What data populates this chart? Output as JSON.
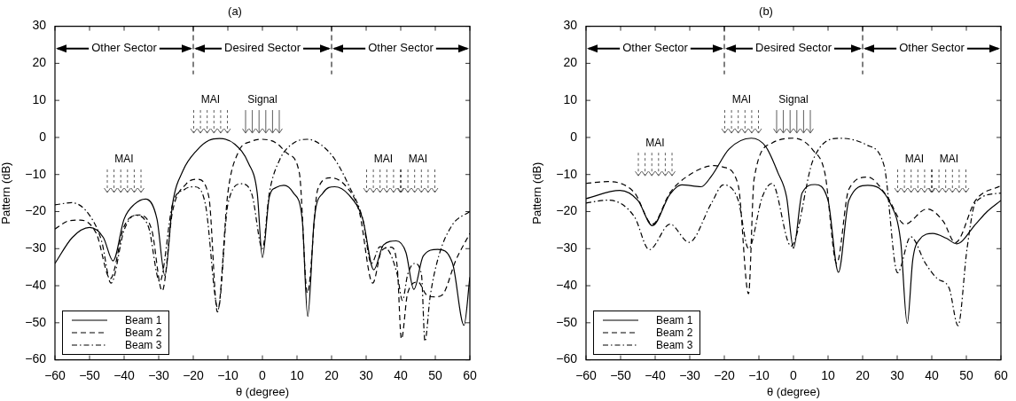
{
  "chart_data": [
    {
      "type": "line",
      "title": "(a)",
      "xlabel": "θ (degree)",
      "ylabel": "Pattern (dB)",
      "xlim": [
        -60,
        60
      ],
      "xticks": [
        -60,
        -50,
        -40,
        -30,
        -20,
        -10,
        0,
        10,
        20,
        30,
        40,
        50,
        60
      ],
      "ylim": [
        -60,
        30
      ],
      "yticks": [
        -60,
        -50,
        -40,
        -30,
        -20,
        -10,
        0,
        10,
        20,
        30
      ],
      "grid": false,
      "legend": "bottom left",
      "marker": "none",
      "series": [
        {
          "name": "Beam 1",
          "color": "#000000",
          "line_style": "solid",
          "x": [
            -60,
            -55,
            -50,
            -46,
            -43.2,
            -40,
            -37,
            -33.8,
            -30.5,
            -28.2,
            -26,
            -23,
            -19,
            -15.5,
            -12.4,
            -8,
            -4,
            -1.5,
            0,
            2,
            4,
            6.2,
            9,
            11.5,
            13.1,
            15,
            17.5,
            20.9,
            25,
            29,
            32.2,
            35,
            38.7,
            41.5,
            43.8,
            46.5,
            50.7,
            55,
            58.3,
            60
          ],
          "values": [
            -34,
            -27,
            -24.3,
            -27,
            -33.3,
            -22,
            -18,
            -16.6,
            -22,
            -37.3,
            -18,
            -9,
            -3.5,
            -0.8,
            -0.3,
            -1.8,
            -7,
            -15,
            -32.4,
            -16,
            -13.5,
            -12.9,
            -15,
            -22,
            -48.3,
            -22,
            -15,
            -13.3,
            -15.5,
            -22,
            -35.7,
            -29,
            -27.9,
            -31,
            -41,
            -32,
            -30.2,
            -34,
            -50.7,
            -37.7
          ]
        },
        {
          "name": "Beam 2",
          "color": "#000000",
          "line_style": "dashed",
          "x": [
            -60,
            -56,
            -52.6,
            -48,
            -44,
            -40,
            -35.9,
            -32,
            -29,
            -26,
            -22,
            -18.8,
            -15.5,
            -13,
            -10,
            -7,
            -3,
            0,
            4,
            7.3,
            10.7,
            13,
            16,
            19.7,
            24,
            28,
            31.9,
            34.5,
            37.2,
            39,
            40.2,
            42,
            45,
            47.5,
            50,
            52,
            56,
            60
          ],
          "values": [
            -24.7,
            -22.5,
            -22.3,
            -26,
            -38.1,
            -24,
            -20.9,
            -25,
            -41.4,
            -20,
            -12.5,
            -11.3,
            -16,
            -47.1,
            -15,
            -4,
            -1,
            -0.5,
            -1.5,
            -4.4,
            -9.7,
            -42,
            -14,
            -10.9,
            -13,
            -20,
            -39.3,
            -30.5,
            -29.6,
            -35,
            -54.4,
            -42,
            -39,
            -42.5,
            -43,
            -42.5,
            -33,
            -25.9
          ]
        },
        {
          "name": "Beam 3",
          "color": "#000000",
          "line_style": "dashdot",
          "x": [
            -60,
            -55.1,
            -50,
            -46.5,
            -43.8,
            -40,
            -36.8,
            -33,
            -29.7,
            -26,
            -22.5,
            -19.7,
            -16.5,
            -12.8,
            -10,
            -6,
            -3,
            0,
            2,
            5,
            9,
            13,
            17,
            21,
            25,
            29,
            31.5,
            34,
            36,
            39,
            40.5,
            42,
            44,
            46,
            47,
            48.5,
            51,
            55,
            60
          ],
          "values": [
            -18.2,
            -17.6,
            -21,
            -28,
            -39.3,
            -25,
            -21,
            -24,
            -38.9,
            -18,
            -14,
            -13.3,
            -18,
            -46.3,
            -18,
            -12.5,
            -15.5,
            -30,
            -15,
            -6,
            -1.5,
            -0.5,
            -2,
            -6,
            -13,
            -22,
            -34,
            -29.5,
            -30,
            -37,
            -44,
            -37,
            -34,
            -37,
            -55,
            -43,
            -32,
            -23.5,
            -20
          ]
        }
      ],
      "ref_lines": [
        {
          "axis": "x",
          "value": -20,
          "line_style": "dashed"
        },
        {
          "axis": "x",
          "value": 20,
          "line_style": "dashed"
        }
      ],
      "annotations": [
        "Other Sector",
        "Desired Sector",
        "Other Sector",
        "MAI",
        "Signal",
        "MAI",
        "MAI",
        "MAI"
      ]
    },
    {
      "type": "line",
      "title": "(b)",
      "xlabel": "θ (degree)",
      "ylabel": "Pattern (dB)",
      "xlim": [
        -60,
        60
      ],
      "xticks": [
        -60,
        -50,
        -40,
        -30,
        -20,
        -10,
        0,
        10,
        20,
        30,
        40,
        50,
        60
      ],
      "ylim": [
        -60,
        30
      ],
      "yticks": [
        -60,
        -50,
        -40,
        -30,
        -20,
        -10,
        0,
        10,
        20,
        30
      ],
      "grid": false,
      "legend": "bottom left",
      "marker": "none",
      "series": [
        {
          "name": "Beam 1",
          "color": "#000000",
          "line_style": "solid",
          "x": [
            -60,
            -50.2,
            -45,
            -40.8,
            -35.7,
            -32.3,
            -26.7,
            -23.7,
            -18.6,
            -12.2,
            -8,
            -4.5,
            -2,
            0,
            2.5,
            6.2,
            10,
            13,
            16,
            21.5,
            28,
            31,
            32.9,
            34.5,
            36.5,
            40.3,
            44.2,
            47.2,
            52.7,
            56,
            60
          ],
          "values": [
            -16.5,
            -14.3,
            -17,
            -23.8,
            -15.3,
            -12.8,
            -13.3,
            -10.4,
            -3.1,
            -0.2,
            -2.5,
            -9.5,
            -16,
            -29.9,
            -15,
            -12.7,
            -17,
            -36.4,
            -17,
            -12.9,
            -17.8,
            -28,
            -50.2,
            -33,
            -27.5,
            -25.9,
            -27.2,
            -28.7,
            -23.4,
            -20,
            -17
          ]
        },
        {
          "name": "Beam 2",
          "color": "#000000",
          "line_style": "dashed",
          "x": [
            -60,
            -53.7,
            -46,
            -40.8,
            -35.7,
            -30.6,
            -22.9,
            -20.3,
            -16,
            -13,
            -11.4,
            -6.2,
            0.2,
            5.7,
            9.1,
            12.5,
            16,
            21.5,
            27,
            32.2,
            38.6,
            43.3,
            46.8,
            52.7,
            60
          ],
          "values": [
            -12.4,
            -11.9,
            -14.9,
            -23.4,
            -14.9,
            -10.4,
            -7.6,
            -8,
            -12.8,
            -42.2,
            -11.3,
            -1.5,
            -0.2,
            -3.5,
            -9.7,
            -34,
            -14,
            -10.7,
            -15.8,
            -23.4,
            -19.3,
            -22.6,
            -28.4,
            -16.9,
            -13
          ]
        },
        {
          "name": "Beam 3",
          "color": "#000000",
          "line_style": "dashdot",
          "x": [
            -60,
            -53.7,
            -46,
            -41.7,
            -35.7,
            -30.2,
            -23.7,
            -20.3,
            -16,
            -13,
            -9,
            -6.2,
            -0.7,
            5.7,
            13.4,
            21.1,
            26.2,
            30.1,
            33.9,
            38.2,
            41.6,
            45,
            47.6,
            50.2,
            52.7,
            60
          ],
          "values": [
            -17.7,
            -16.9,
            -21.4,
            -30.3,
            -23.4,
            -28.3,
            -17.7,
            -12.8,
            -16.9,
            -30,
            -16,
            -12.4,
            -29.3,
            -6,
            -0.2,
            -2,
            -7.6,
            -36.5,
            -26.8,
            -34,
            -38.1,
            -40.6,
            -50.8,
            -30,
            -17.4,
            -15
          ]
        }
      ],
      "ref_lines": [
        {
          "axis": "x",
          "value": -20,
          "line_style": "dashed"
        },
        {
          "axis": "x",
          "value": 20,
          "line_style": "dashed"
        }
      ],
      "annotations": [
        "Other Sector",
        "Desired Sector",
        "Other Sector",
        "MAI",
        "Signal",
        "MAI",
        "MAI",
        "MAI"
      ]
    }
  ]
}
